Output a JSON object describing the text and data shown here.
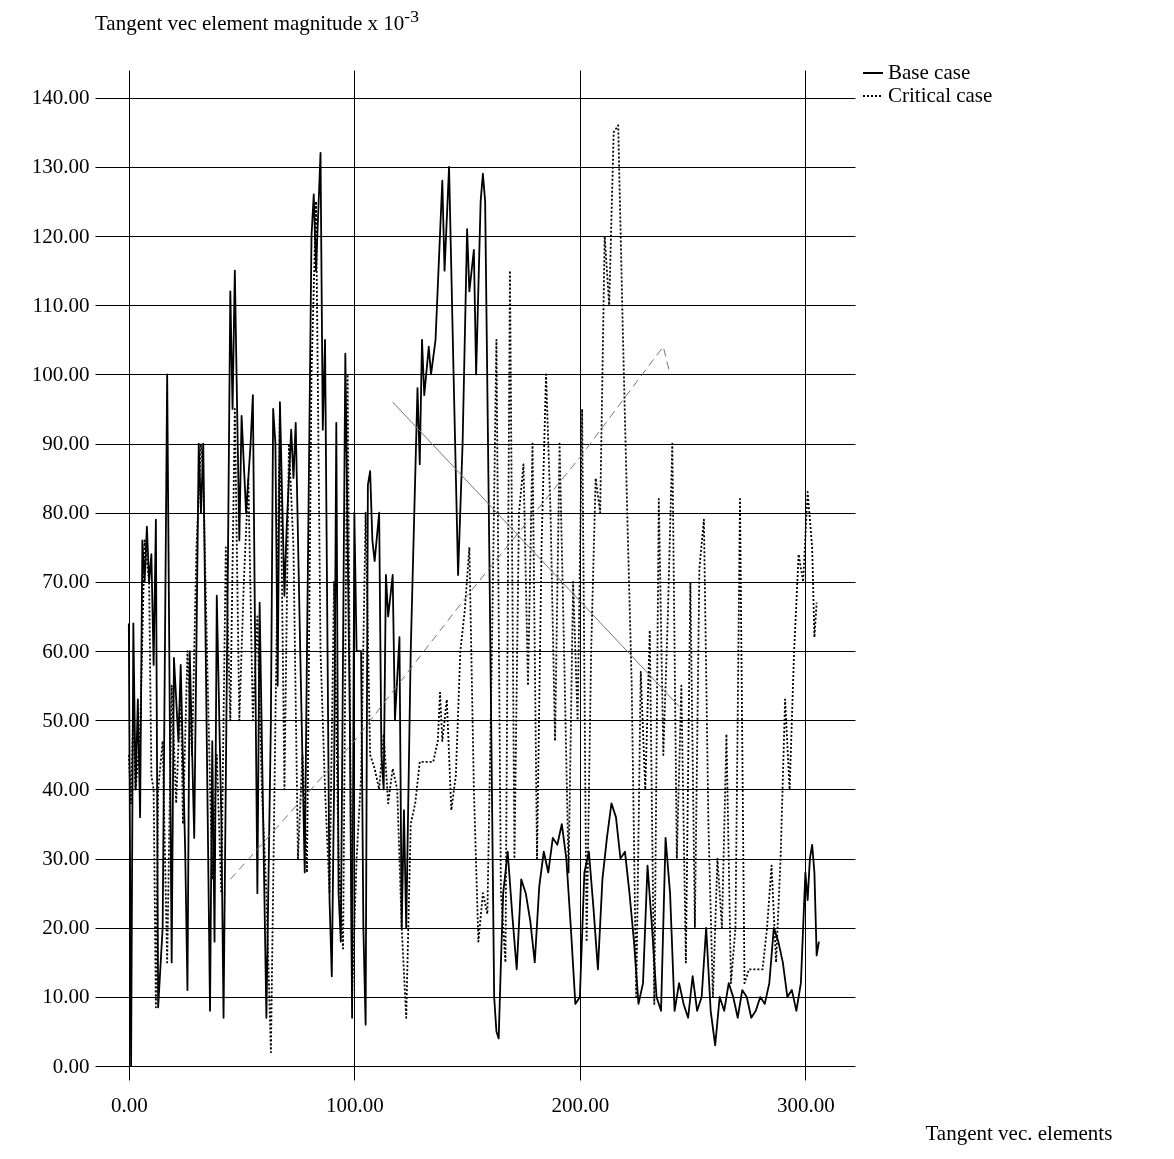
{
  "chart_data": {
    "type": "line",
    "ylabel": "Tangent vec element magnitude x 10$^{-3}$",
    "xlabel": "Tangent vec. elements",
    "xlim": [
      -15,
      322
    ],
    "ylim": [
      -2,
      144
    ],
    "xticks": [
      {
        "value": 0,
        "label": "0.00"
      },
      {
        "value": 100,
        "label": "100.00"
      },
      {
        "value": 200,
        "label": "200.00"
      },
      {
        "value": 300,
        "label": "300.00"
      }
    ],
    "yticks": [
      {
        "value": 0,
        "label": "0.00"
      },
      {
        "value": 10,
        "label": "10.00"
      },
      {
        "value": 20,
        "label": "20.00"
      },
      {
        "value": 30,
        "label": "30.00"
      },
      {
        "value": 40,
        "label": "40.00"
      },
      {
        "value": 50,
        "label": "50.00"
      },
      {
        "value": 60,
        "label": "60.00"
      },
      {
        "value": 70,
        "label": "70.00"
      },
      {
        "value": 80,
        "label": "80.00"
      },
      {
        "value": 90,
        "label": "90.00"
      },
      {
        "value": 100,
        "label": "100.00"
      },
      {
        "value": 110,
        "label": "110.00"
      },
      {
        "value": 120,
        "label": "120.00"
      },
      {
        "value": 130,
        "label": "130.00"
      },
      {
        "value": 140,
        "label": "140.00"
      }
    ],
    "grid": true,
    "legend": "top right",
    "series": [
      {
        "name": "Base case",
        "color": "#000000",
        "line_style": "solid",
        "x": [
          0,
          1,
          2,
          3,
          4,
          5,
          6,
          7,
          8,
          9,
          10,
          11,
          12,
          13,
          15,
          17,
          19,
          20,
          22,
          23,
          25,
          26,
          27,
          29,
          31,
          32,
          33,
          36,
          37,
          38,
          39,
          41,
          42,
          44,
          45,
          46,
          47,
          49,
          50,
          52,
          54,
          55,
          57,
          58,
          61,
          63,
          64,
          65,
          66,
          67,
          69,
          70,
          72,
          73,
          74,
          76,
          78,
          79,
          81,
          82,
          83,
          85,
          86,
          87,
          89,
          90,
          91,
          92,
          93,
          94,
          96,
          98,
          99,
          100,
          101,
          103,
          104,
          105,
          106,
          107,
          108,
          109,
          111,
          112,
          113,
          114,
          115,
          117,
          118,
          120,
          121,
          122,
          123,
          125,
          128,
          129,
          130,
          131,
          133,
          134,
          136,
          139,
          140,
          142,
          144,
          146,
          148,
          150,
          151,
          153,
          154,
          156,
          157,
          158,
          160,
          161,
          162,
          163,
          164,
          165,
          166,
          168,
          170,
          172,
          174,
          176,
          178,
          180,
          182,
          184,
          186,
          188,
          190,
          192,
          194,
          196,
          198,
          200,
          202,
          204,
          206,
          208,
          210,
          212,
          214,
          216,
          218,
          220,
          222,
          224,
          226,
          228,
          230,
          232,
          234,
          236,
          238,
          240,
          242,
          244,
          246,
          248,
          250,
          252,
          254,
          256,
          258,
          260,
          262,
          264,
          266,
          268,
          270,
          272,
          274,
          276,
          278,
          280,
          282,
          284,
          286,
          288,
          290,
          292,
          294,
          296,
          298,
          300,
          301,
          302,
          303,
          304,
          305,
          306
        ],
        "values": [
          64,
          0,
          64,
          40,
          53,
          36,
          76,
          70,
          78,
          70,
          74,
          58,
          79,
          8.5,
          20,
          100,
          15,
          59,
          47,
          58,
          31,
          11,
          60,
          33,
          90,
          80,
          90,
          8,
          47,
          18,
          68,
          36,
          7,
          75,
          112,
          95,
          115,
          76,
          94,
          80,
          90,
          97,
          25,
          67,
          7,
          50,
          95,
          90,
          55,
          96,
          68,
          78,
          92,
          85,
          93,
          60,
          28,
          60,
          120,
          126,
          115,
          132,
          92,
          105,
          24,
          13,
          40,
          93,
          25,
          18,
          103,
          50,
          7,
          80,
          60,
          60,
          20,
          6,
          84,
          86,
          76,
          73,
          80,
          45,
          40,
          71,
          65,
          71,
          50,
          62,
          20,
          37,
          20,
          60,
          98,
          87,
          105,
          97,
          104,
          100,
          105,
          128,
          115,
          130,
          100,
          71,
          90,
          121,
          112,
          118,
          100,
          125,
          129,
          125,
          70,
          40,
          10,
          5,
          4,
          15,
          25,
          31,
          22,
          14,
          27,
          25,
          21,
          15,
          26,
          31,
          28,
          33,
          32,
          35,
          30,
          20,
          9,
          10,
          28,
          31,
          23,
          14,
          27,
          33,
          38,
          36,
          30,
          31,
          25,
          18,
          9,
          12,
          29,
          20,
          10,
          8,
          33,
          25,
          8,
          12,
          9,
          7,
          13,
          8,
          10,
          20,
          8,
          3,
          10,
          8,
          12,
          10,
          7,
          11,
          10,
          7,
          8,
          10,
          9,
          12,
          20,
          18,
          15,
          10,
          11,
          8,
          12,
          28,
          24,
          30,
          32,
          28,
          16,
          18
        ]
      },
      {
        "name": "Critical case",
        "color": "#000000",
        "line_style": "dotted",
        "x": [
          0,
          1,
          2,
          3,
          5,
          7,
          9,
          10,
          11,
          12,
          13,
          15,
          17,
          19,
          21,
          23,
          24,
          26,
          28,
          30,
          32,
          33,
          35,
          37,
          39,
          41,
          43,
          45,
          47,
          49,
          51,
          53,
          55,
          57,
          59,
          61,
          63,
          65,
          67,
          69,
          71,
          73,
          75,
          77,
          79,
          81,
          83,
          85,
          87,
          89,
          91,
          93,
          95,
          97,
          99,
          101,
          103,
          105,
          107,
          109,
          111,
          113,
          115,
          117,
          119,
          121,
          123,
          125,
          127,
          129,
          132,
          135,
          137,
          138,
          139,
          141,
          143,
          145,
          147,
          149,
          151,
          153,
          155,
          157,
          159,
          161,
          163,
          165,
          167,
          169,
          171,
          173,
          175,
          177,
          179,
          181,
          183,
          185,
          187,
          189,
          191,
          193,
          195,
          197,
          199,
          201,
          203,
          205,
          207,
          209,
          211,
          213,
          215,
          217,
          219,
          221,
          223,
          225,
          227,
          229,
          231,
          233,
          235,
          237,
          239,
          241,
          243,
          245,
          247,
          249,
          251,
          253,
          255,
          257,
          259,
          261,
          263,
          265,
          267,
          269,
          271,
          273,
          275,
          278,
          281,
          283,
          285,
          287,
          289,
          291,
          293,
          295,
          297,
          299,
          301,
          303,
          304,
          305
        ],
        "values": [
          45,
          38,
          52,
          40,
          48,
          76,
          70,
          42,
          40,
          8.5,
          40,
          47,
          15,
          55,
          38,
          55,
          35,
          60,
          45,
          75,
          90,
          85,
          55,
          27,
          45,
          25,
          75,
          50,
          95,
          50,
          70,
          85,
          50,
          65,
          40,
          25,
          2,
          50,
          95,
          40,
          90,
          75,
          30,
          45,
          28,
          100,
          125,
          60,
          40,
          25,
          70,
          30,
          17,
          100,
          10,
          30,
          42,
          80,
          45,
          43,
          40,
          48,
          38,
          43,
          40,
          20,
          7,
          35,
          38,
          44,
          44,
          44,
          47,
          54,
          47,
          53,
          37,
          42,
          60,
          66,
          75,
          40,
          18,
          25,
          22,
          60,
          105,
          25,
          15,
          115,
          30,
          80,
          87,
          55,
          90,
          30,
          75,
          100,
          80,
          47,
          90,
          60,
          28,
          70,
          50,
          95,
          18,
          60,
          85,
          80,
          120,
          110,
          135,
          136,
          107,
          80,
          55,
          10,
          57,
          40,
          63,
          9,
          82,
          45,
          65,
          90,
          30,
          55,
          15,
          70,
          20,
          72,
          79,
          35,
          10,
          30,
          20,
          48,
          12,
          20,
          82,
          12,
          14,
          14,
          14,
          20,
          29,
          15,
          30,
          53,
          40,
          60,
          74,
          70,
          83,
          75,
          62,
          67
        ]
      },
      {
        "color": "#777777",
        "line_style": "dashed",
        "x": [
          45,
          100,
          150,
          200,
          230,
          237,
          240
        ],
        "values": [
          27,
          47,
          68,
          88,
          101,
          104,
          100
        ]
      },
      {
        "color": "#777777",
        "line_style": "solid",
        "x": [
          117,
          244
        ],
        "values": [
          96,
          52
        ]
      }
    ]
  }
}
